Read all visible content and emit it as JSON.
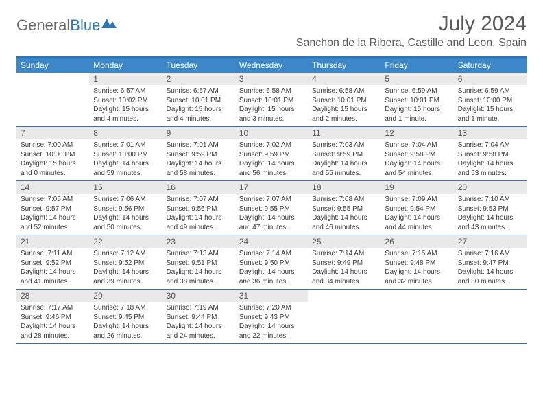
{
  "brand": {
    "part1": "General",
    "part2": "Blue"
  },
  "title": "July 2024",
  "location": "Sanchon de la Ribera, Castille and Leon, Spain",
  "colors": {
    "header_bar": "#3b87c8",
    "rule": "#2f77bb",
    "daynum_bg": "#e9e9e9",
    "text": "#333333",
    "muted": "#5a5a5a"
  },
  "weekdays": [
    "Sunday",
    "Monday",
    "Tuesday",
    "Wednesday",
    "Thursday",
    "Friday",
    "Saturday"
  ],
  "weeks": [
    [
      {
        "n": "",
        "sr": "",
        "ss": "",
        "dl": ""
      },
      {
        "n": "1",
        "sr": "Sunrise: 6:57 AM",
        "ss": "Sunset: 10:02 PM",
        "dl": "Daylight: 15 hours and 4 minutes."
      },
      {
        "n": "2",
        "sr": "Sunrise: 6:57 AM",
        "ss": "Sunset: 10:01 PM",
        "dl": "Daylight: 15 hours and 4 minutes."
      },
      {
        "n": "3",
        "sr": "Sunrise: 6:58 AM",
        "ss": "Sunset: 10:01 PM",
        "dl": "Daylight: 15 hours and 3 minutes."
      },
      {
        "n": "4",
        "sr": "Sunrise: 6:58 AM",
        "ss": "Sunset: 10:01 PM",
        "dl": "Daylight: 15 hours and 2 minutes."
      },
      {
        "n": "5",
        "sr": "Sunrise: 6:59 AM",
        "ss": "Sunset: 10:01 PM",
        "dl": "Daylight: 15 hours and 1 minute."
      },
      {
        "n": "6",
        "sr": "Sunrise: 6:59 AM",
        "ss": "Sunset: 10:00 PM",
        "dl": "Daylight: 15 hours and 1 minute."
      }
    ],
    [
      {
        "n": "7",
        "sr": "Sunrise: 7:00 AM",
        "ss": "Sunset: 10:00 PM",
        "dl": "Daylight: 15 hours and 0 minutes."
      },
      {
        "n": "8",
        "sr": "Sunrise: 7:01 AM",
        "ss": "Sunset: 10:00 PM",
        "dl": "Daylight: 14 hours and 59 minutes."
      },
      {
        "n": "9",
        "sr": "Sunrise: 7:01 AM",
        "ss": "Sunset: 9:59 PM",
        "dl": "Daylight: 14 hours and 58 minutes."
      },
      {
        "n": "10",
        "sr": "Sunrise: 7:02 AM",
        "ss": "Sunset: 9:59 PM",
        "dl": "Daylight: 14 hours and 56 minutes."
      },
      {
        "n": "11",
        "sr": "Sunrise: 7:03 AM",
        "ss": "Sunset: 9:59 PM",
        "dl": "Daylight: 14 hours and 55 minutes."
      },
      {
        "n": "12",
        "sr": "Sunrise: 7:04 AM",
        "ss": "Sunset: 9:58 PM",
        "dl": "Daylight: 14 hours and 54 minutes."
      },
      {
        "n": "13",
        "sr": "Sunrise: 7:04 AM",
        "ss": "Sunset: 9:58 PM",
        "dl": "Daylight: 14 hours and 53 minutes."
      }
    ],
    [
      {
        "n": "14",
        "sr": "Sunrise: 7:05 AM",
        "ss": "Sunset: 9:57 PM",
        "dl": "Daylight: 14 hours and 52 minutes."
      },
      {
        "n": "15",
        "sr": "Sunrise: 7:06 AM",
        "ss": "Sunset: 9:56 PM",
        "dl": "Daylight: 14 hours and 50 minutes."
      },
      {
        "n": "16",
        "sr": "Sunrise: 7:07 AM",
        "ss": "Sunset: 9:56 PM",
        "dl": "Daylight: 14 hours and 49 minutes."
      },
      {
        "n": "17",
        "sr": "Sunrise: 7:07 AM",
        "ss": "Sunset: 9:55 PM",
        "dl": "Daylight: 14 hours and 47 minutes."
      },
      {
        "n": "18",
        "sr": "Sunrise: 7:08 AM",
        "ss": "Sunset: 9:55 PM",
        "dl": "Daylight: 14 hours and 46 minutes."
      },
      {
        "n": "19",
        "sr": "Sunrise: 7:09 AM",
        "ss": "Sunset: 9:54 PM",
        "dl": "Daylight: 14 hours and 44 minutes."
      },
      {
        "n": "20",
        "sr": "Sunrise: 7:10 AM",
        "ss": "Sunset: 9:53 PM",
        "dl": "Daylight: 14 hours and 43 minutes."
      }
    ],
    [
      {
        "n": "21",
        "sr": "Sunrise: 7:11 AM",
        "ss": "Sunset: 9:52 PM",
        "dl": "Daylight: 14 hours and 41 minutes."
      },
      {
        "n": "22",
        "sr": "Sunrise: 7:12 AM",
        "ss": "Sunset: 9:52 PM",
        "dl": "Daylight: 14 hours and 39 minutes."
      },
      {
        "n": "23",
        "sr": "Sunrise: 7:13 AM",
        "ss": "Sunset: 9:51 PM",
        "dl": "Daylight: 14 hours and 38 minutes."
      },
      {
        "n": "24",
        "sr": "Sunrise: 7:14 AM",
        "ss": "Sunset: 9:50 PM",
        "dl": "Daylight: 14 hours and 36 minutes."
      },
      {
        "n": "25",
        "sr": "Sunrise: 7:14 AM",
        "ss": "Sunset: 9:49 PM",
        "dl": "Daylight: 14 hours and 34 minutes."
      },
      {
        "n": "26",
        "sr": "Sunrise: 7:15 AM",
        "ss": "Sunset: 9:48 PM",
        "dl": "Daylight: 14 hours and 32 minutes."
      },
      {
        "n": "27",
        "sr": "Sunrise: 7:16 AM",
        "ss": "Sunset: 9:47 PM",
        "dl": "Daylight: 14 hours and 30 minutes."
      }
    ],
    [
      {
        "n": "28",
        "sr": "Sunrise: 7:17 AM",
        "ss": "Sunset: 9:46 PM",
        "dl": "Daylight: 14 hours and 28 minutes."
      },
      {
        "n": "29",
        "sr": "Sunrise: 7:18 AM",
        "ss": "Sunset: 9:45 PM",
        "dl": "Daylight: 14 hours and 26 minutes."
      },
      {
        "n": "30",
        "sr": "Sunrise: 7:19 AM",
        "ss": "Sunset: 9:44 PM",
        "dl": "Daylight: 14 hours and 24 minutes."
      },
      {
        "n": "31",
        "sr": "Sunrise: 7:20 AM",
        "ss": "Sunset: 9:43 PM",
        "dl": "Daylight: 14 hours and 22 minutes."
      },
      {
        "n": "",
        "sr": "",
        "ss": "",
        "dl": ""
      },
      {
        "n": "",
        "sr": "",
        "ss": "",
        "dl": ""
      },
      {
        "n": "",
        "sr": "",
        "ss": "",
        "dl": ""
      }
    ]
  ]
}
